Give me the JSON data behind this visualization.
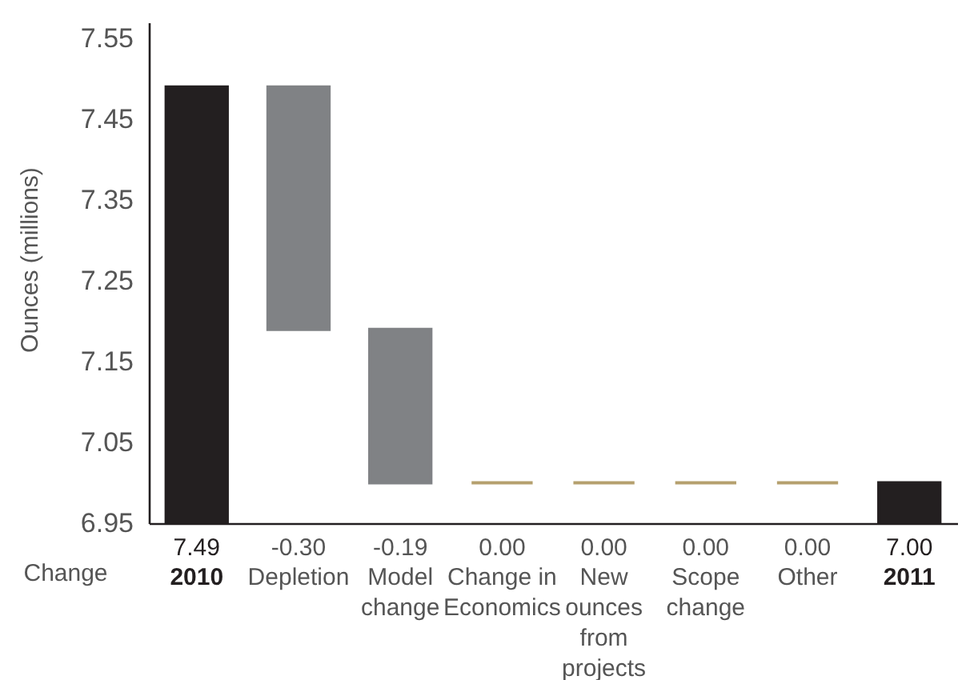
{
  "chart_data": {
    "type": "bar",
    "ylabel": "Ounces (millions)",
    "categories": [
      "2010",
      "Depletion",
      "Model change",
      "Change in Economics",
      "New ounces from projects",
      "Scope change",
      "Other",
      "2011"
    ],
    "values": [
      7.49,
      -0.3,
      -0.19,
      0,
      0,
      0,
      0,
      7.0
    ],
    "base": [
      null,
      7.49,
      7.19,
      7.0,
      7.0,
      7.0,
      7.0,
      null
    ],
    "colors": [
      "#231f20",
      "#808285",
      "#808285",
      "#b5a06e",
      "#b5a06e",
      "#b5a06e",
      "#b5a06e",
      "#231f20"
    ],
    "value_labels": [
      "7.49",
      "-0.30",
      "-0.19",
      "0.00",
      "0.00",
      "0.00",
      "0.00",
      "7.00"
    ],
    "ylim": [
      6.95,
      7.57
    ],
    "yticks": [
      {
        "value": 6.95,
        "label": "6.95"
      },
      {
        "value": 7.05,
        "label": "7.05"
      },
      {
        "value": 7.15,
        "label": "7.15"
      },
      {
        "value": 7.25,
        "label": "7.25"
      },
      {
        "value": 7.35,
        "label": "7.35"
      },
      {
        "value": 7.45,
        "label": "7.45"
      },
      {
        "value": 7.55,
        "label": "7.55"
      }
    ],
    "annotations": [
      "Change"
    ]
  }
}
